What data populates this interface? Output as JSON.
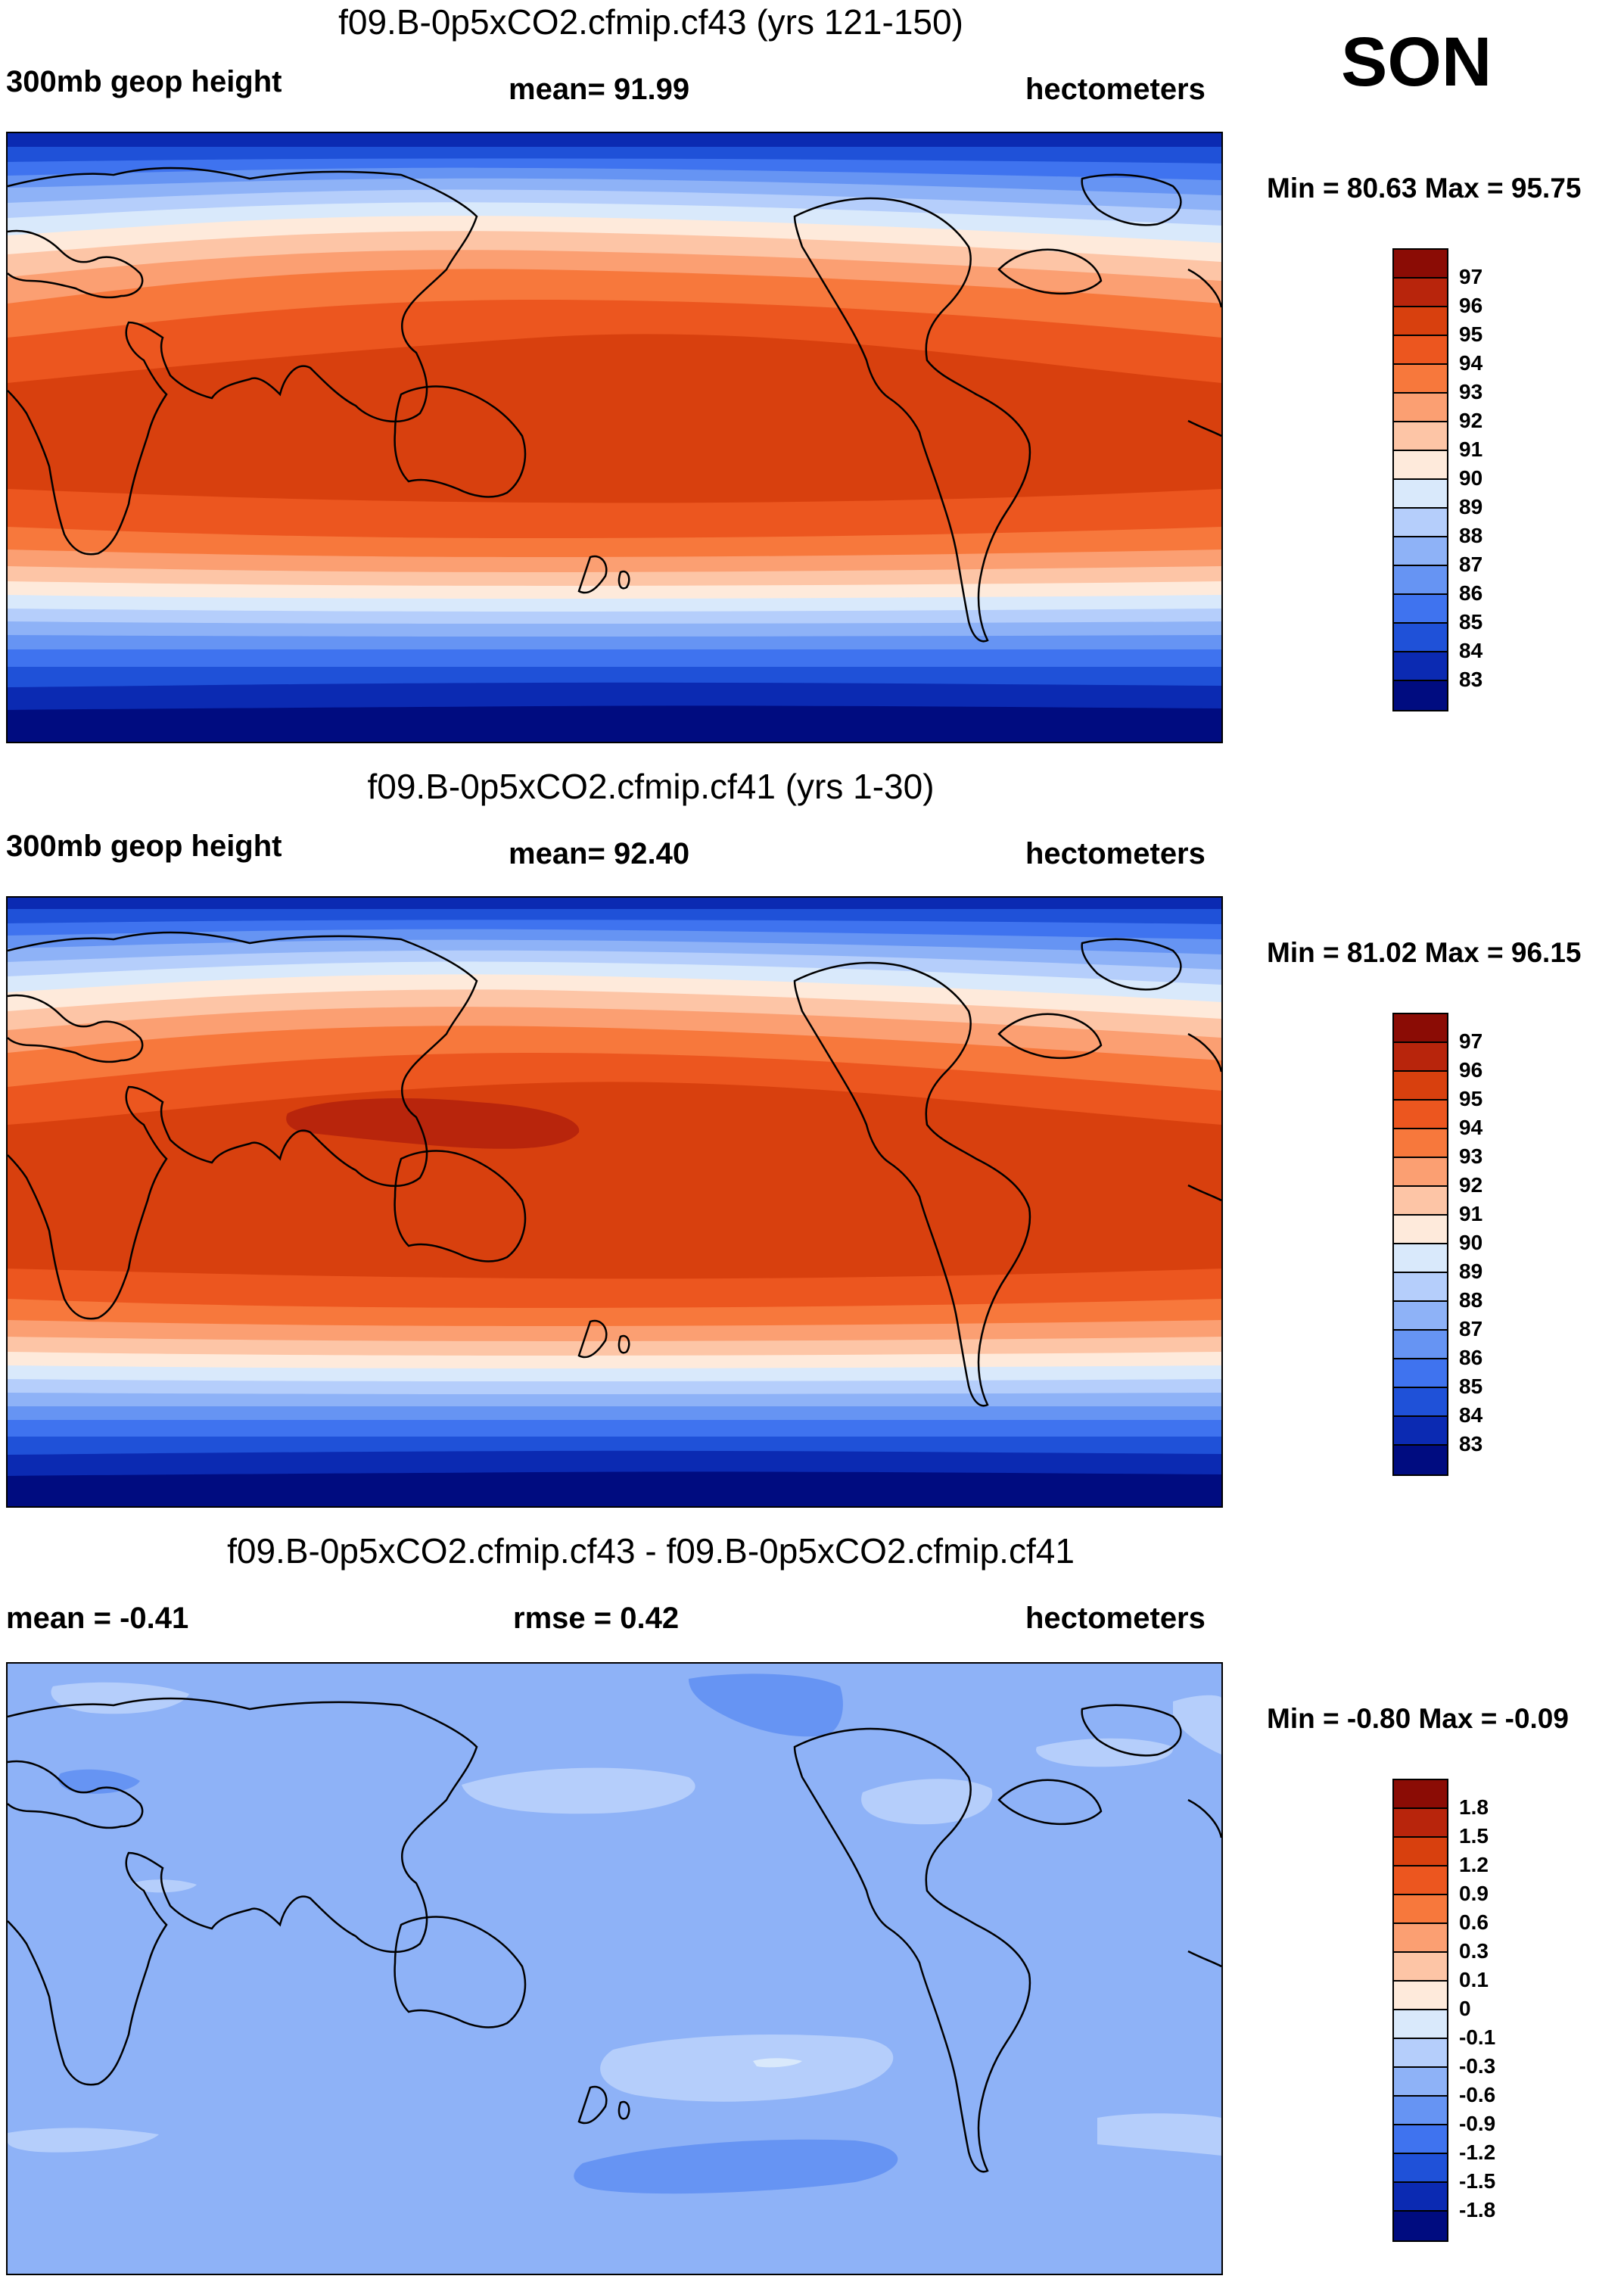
{
  "season": "SON",
  "panels": [
    {
      "id": "top",
      "title": "f09.B-0p5xCO2.cfmip.cf43 (yrs 121-150)",
      "left_label": "300mb geop height",
      "center_label": "mean=  91.99",
      "right_label": "hectometers",
      "min_max": "Min =  80.63 Max =  95.75",
      "colorbar": {
        "labels": [
          "97",
          "96",
          "95",
          "94",
          "93",
          "92",
          "91",
          "90",
          "89",
          "88",
          "87",
          "86",
          "85",
          "84",
          "83"
        ],
        "colors": [
          "#8b0c05",
          "#b8250c",
          "#d8400e",
          "#ec561f",
          "#f7783c",
          "#fb9f72",
          "#fdc5a6",
          "#feeadb",
          "#d9e9fb",
          "#b5cefb",
          "#8eb2f7",
          "#6694f3",
          "#3f73ef",
          "#1f51d8",
          "#0b2ab2",
          "#000c80"
        ]
      }
    },
    {
      "id": "middle",
      "title": "f09.B-0p5xCO2.cfmip.cf41 (yrs 1-30)",
      "left_label": "300mb geop height",
      "center_label": "mean=  92.40",
      "right_label": "hectometers",
      "min_max": "Min =  81.02 Max =  96.15",
      "colorbar": {
        "labels": [
          "97",
          "96",
          "95",
          "94",
          "93",
          "92",
          "91",
          "90",
          "89",
          "88",
          "87",
          "86",
          "85",
          "84",
          "83"
        ],
        "colors": [
          "#8b0c05",
          "#b8250c",
          "#d8400e",
          "#ec561f",
          "#f7783c",
          "#fb9f72",
          "#fdc5a6",
          "#feeadb",
          "#d9e9fb",
          "#b5cefb",
          "#8eb2f7",
          "#6694f3",
          "#3f73ef",
          "#1f51d8",
          "#0b2ab2",
          "#000c80"
        ]
      }
    },
    {
      "id": "bottom",
      "title": "f09.B-0p5xCO2.cfmip.cf43 - f09.B-0p5xCO2.cfmip.cf41",
      "left_label": "mean =  -0.41",
      "center_label": "rmse =   0.42",
      "right_label": "hectometers",
      "min_max": "Min =  -0.80 Max =  -0.09",
      "colorbar": {
        "labels": [
          "1.8",
          "1.5",
          "1.2",
          "0.9",
          "0.6",
          "0.3",
          "0.1",
          "0",
          "-0.1",
          "-0.3",
          "-0.6",
          "-0.9",
          "-1.2",
          "-1.5",
          "-1.8"
        ],
        "colors": [
          "#8b0c05",
          "#b8250c",
          "#d8400e",
          "#ec561f",
          "#f7783c",
          "#fb9f72",
          "#fdc5a6",
          "#feeadb",
          "#d9e9fb",
          "#b5cefb",
          "#8eb2f7",
          "#6694f3",
          "#3f73ef",
          "#1f51d8",
          "#0b2ab2",
          "#000c80"
        ]
      }
    }
  ]
}
